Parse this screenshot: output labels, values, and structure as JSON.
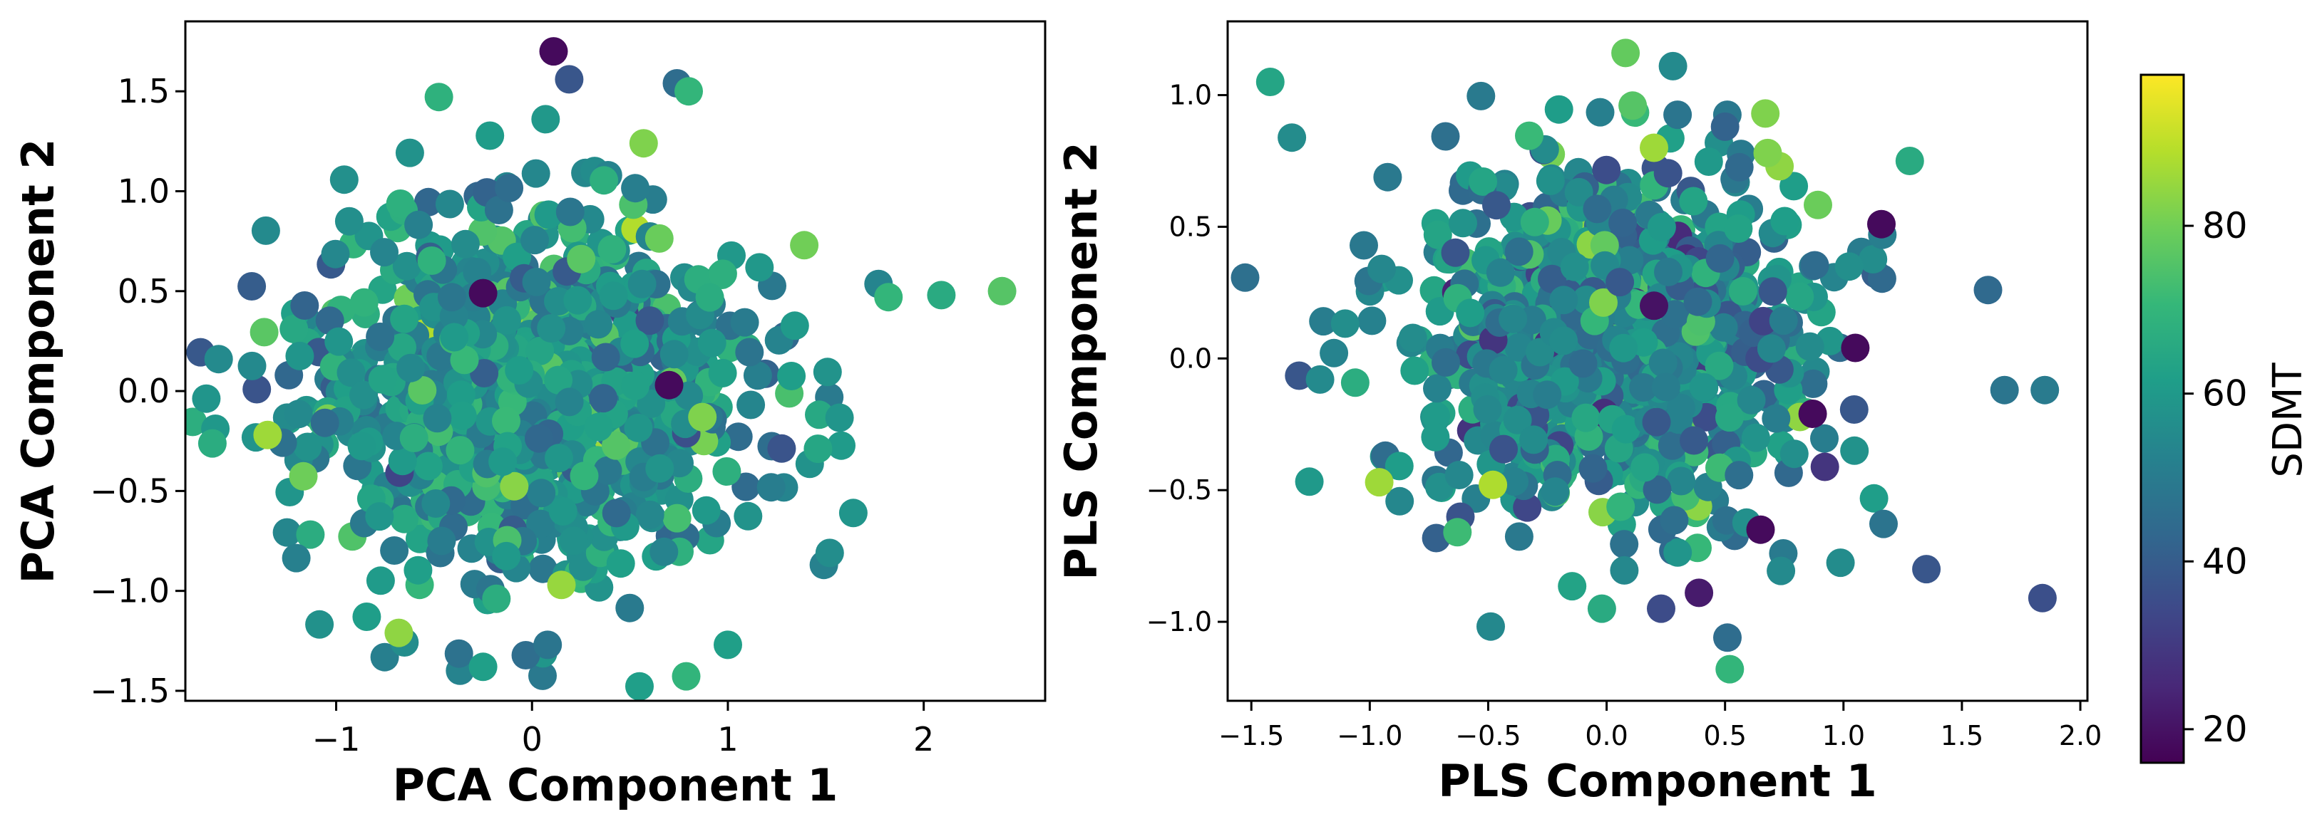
{
  "chart_data": [
    {
      "type": "scatter",
      "title": "",
      "xlabel": "PCA Component 1",
      "ylabel": "PCA Component 2",
      "xlim": [
        -1.77,
        2.62
      ],
      "ylim": [
        -1.55,
        1.85
      ],
      "xticks": [
        -1,
        0,
        1,
        2
      ],
      "xtick_labels": [
        "−1",
        "0",
        "1",
        "2"
      ],
      "yticks": [
        -1.5,
        -1.0,
        -0.5,
        0.0,
        0.5,
        1.0,
        1.5
      ],
      "ytick_labels": [
        "−1.5",
        "−1.0",
        "−0.5",
        "0.0",
        "0.5",
        "1.0",
        "1.5"
      ],
      "color_variable": "SDMT",
      "grid": false,
      "notable_points": [
        {
          "x": 0.11,
          "y": 1.7,
          "sdmt": 18
        },
        {
          "x": 0.19,
          "y": 1.56,
          "sdmt": 38
        },
        {
          "x": 0.74,
          "y": 1.54,
          "sdmt": 45
        },
        {
          "x": 0.8,
          "y": 1.5,
          "sdmt": 70
        },
        {
          "x": 0.57,
          "y": 1.24,
          "sdmt": 82
        },
        {
          "x": 1.39,
          "y": 0.73,
          "sdmt": 80
        },
        {
          "x": 1.82,
          "y": 0.47,
          "sdmt": 70
        },
        {
          "x": 2.09,
          "y": 0.48,
          "sdmt": 66
        },
        {
          "x": 2.4,
          "y": 0.5,
          "sdmt": 76
        },
        {
          "x": -0.25,
          "y": 0.49,
          "sdmt": 18
        },
        {
          "x": 0.7,
          "y": 0.03,
          "sdmt": 18
        },
        {
          "x": 0.87,
          "y": -0.13,
          "sdmt": 82
        },
        {
          "x": -1.6,
          "y": 0.16,
          "sdmt": 55
        },
        {
          "x": -1.35,
          "y": -0.22,
          "sdmt": 86
        },
        {
          "x": -0.68,
          "y": -1.21,
          "sdmt": 84
        },
        {
          "x": -0.25,
          "y": -1.38,
          "sdmt": 62
        },
        {
          "x": 0.08,
          "y": -1.27,
          "sdmt": 48
        },
        {
          "x": 1.0,
          "y": -1.27,
          "sdmt": 62
        },
        {
          "x": 1.49,
          "y": -0.87,
          "sdmt": 52
        },
        {
          "x": 1.52,
          "y": -0.81,
          "sdmt": 56
        },
        {
          "x": 0.15,
          "y": -0.97,
          "sdmt": 85
        }
      ],
      "cloud": {
        "center": [
          0.0,
          0.0
        ],
        "spread": [
          0.55,
          0.45
        ],
        "n_points": 1000,
        "sdmt_mean": 58,
        "sdmt_sd": 9
      }
    },
    {
      "type": "scatter",
      "title": "",
      "xlabel": "PLS Component 1",
      "ylabel": "PLS Component 2",
      "xlim": [
        -1.6,
        2.03
      ],
      "ylim": [
        -1.3,
        1.28
      ],
      "xticks": [
        -1.5,
        -1.0,
        -0.5,
        0.0,
        0.5,
        1.0,
        1.5,
        2.0
      ],
      "xtick_labels": [
        "−1.5",
        "−1.0",
        "−0.5",
        "0.0",
        "0.5",
        "1.0",
        "1.5",
        "2.0"
      ],
      "yticks": [
        -1.0,
        -0.5,
        0.0,
        0.5,
        1.0
      ],
      "ytick_labels": [
        "−1.0",
        "−0.5",
        "0.0",
        "0.5",
        "1.0"
      ],
      "color_variable": "SDMT",
      "grid": false,
      "notable_points": [
        {
          "x": -1.42,
          "y": 1.05,
          "sdmt": 64
        },
        {
          "x": 0.08,
          "y": 1.16,
          "sdmt": 78
        },
        {
          "x": 0.28,
          "y": 1.11,
          "sdmt": 55
        },
        {
          "x": 0.11,
          "y": 0.96,
          "sdmt": 76
        },
        {
          "x": 0.5,
          "y": 0.88,
          "sdmt": 42
        },
        {
          "x": 0.67,
          "y": 0.93,
          "sdmt": 82
        },
        {
          "x": 0.73,
          "y": 0.73,
          "sdmt": 84
        },
        {
          "x": 1.16,
          "y": 0.51,
          "sdmt": 18
        },
        {
          "x": 1.28,
          "y": 0.75,
          "sdmt": 66
        },
        {
          "x": 1.61,
          "y": 0.26,
          "sdmt": 44
        },
        {
          "x": 1.68,
          "y": -0.12,
          "sdmt": 48
        },
        {
          "x": 1.85,
          "y": -0.12,
          "sdmt": 50
        },
        {
          "x": 1.35,
          "y": -0.8,
          "sdmt": 38
        },
        {
          "x": 1.84,
          "y": -0.91,
          "sdmt": 36
        },
        {
          "x": 1.05,
          "y": 0.04,
          "sdmt": 18
        },
        {
          "x": 0.87,
          "y": -0.21,
          "sdmt": 18
        },
        {
          "x": 0.2,
          "y": 0.2,
          "sdmt": 20
        },
        {
          "x": 0.65,
          "y": -0.65,
          "sdmt": 18
        },
        {
          "x": 0.39,
          "y": -0.89,
          "sdmt": 22
        },
        {
          "x": 0.23,
          "y": -0.95,
          "sdmt": 35
        },
        {
          "x": 0.51,
          "y": -1.06,
          "sdmt": 45
        },
        {
          "x": 0.52,
          "y": -1.18,
          "sdmt": 70
        },
        {
          "x": -0.02,
          "y": -0.95,
          "sdmt": 66
        },
        {
          "x": -1.21,
          "y": -0.08,
          "sdmt": 55
        },
        {
          "x": -0.95,
          "y": 0.34,
          "sdmt": 54
        },
        {
          "x": -0.96,
          "y": -0.47,
          "sdmt": 86
        },
        {
          "x": -0.48,
          "y": -0.48,
          "sdmt": 88
        },
        {
          "x": -0.63,
          "y": -0.66,
          "sdmt": 72
        },
        {
          "x": 0.2,
          "y": 0.8,
          "sdmt": 86
        },
        {
          "x": 0.68,
          "y": 0.78,
          "sdmt": 82
        }
      ],
      "cloud": {
        "center": [
          0.05,
          0.05
        ],
        "spread": [
          0.42,
          0.33
        ],
        "n_points": 1000,
        "sdmt_mean": 55,
        "sdmt_sd": 10
      }
    }
  ],
  "colorbar": {
    "label": "SDMT",
    "cmap": "viridis",
    "range": [
      16,
      98
    ],
    "ticks": [
      20,
      40,
      60,
      80
    ],
    "tick_labels": [
      "20",
      "40",
      "60",
      "80"
    ],
    "colors": [
      "#440154",
      "#482878",
      "#3e4989",
      "#31688e",
      "#26828e",
      "#1f9e89",
      "#35b779",
      "#6ece58",
      "#b5de2b",
      "#fde725"
    ]
  }
}
